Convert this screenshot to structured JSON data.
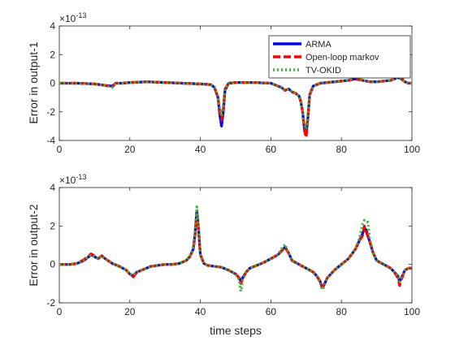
{
  "chart_data": [
    {
      "type": "line",
      "ylabel": "Error in output-1",
      "xlabel": "",
      "exponent_label": "×10",
      "exponent_power": "-13",
      "xlim": [
        0,
        100
      ],
      "ylim": [
        -4,
        4
      ],
      "xticks": [
        "0",
        "20",
        "40",
        "60",
        "80",
        "100"
      ],
      "yticks": [
        "-4",
        "-2",
        "0",
        "2",
        "4"
      ],
      "legend": {
        "placement": "top-right",
        "entries": [
          "ARMA",
          "Open-loop markov",
          "TV-OKID"
        ]
      },
      "series": [
        {
          "name": "ARMA",
          "color": "#0000ff",
          "x": [
            0,
            5,
            10,
            13,
            15,
            16,
            18,
            20,
            25,
            30,
            35,
            40,
            43,
            44,
            45,
            45.5,
            46,
            46.5,
            47,
            48,
            50,
            55,
            60,
            62,
            63,
            64,
            65,
            66,
            67,
            68,
            68.5,
            69,
            69.5,
            70,
            70.5,
            71,
            72,
            74,
            76,
            78,
            80,
            82,
            84,
            86,
            88,
            90,
            92,
            94,
            95,
            96,
            97,
            98,
            99,
            100
          ],
          "y": [
            0,
            0,
            -0.05,
            -0.15,
            -0.2,
            0,
            0,
            0.05,
            0.1,
            0.05,
            0,
            -0.05,
            -0.1,
            -0.3,
            -1.0,
            -2.2,
            -3.0,
            -2.0,
            -0.5,
            0,
            0.05,
            0.05,
            0,
            -0.2,
            -0.3,
            -0.5,
            -0.4,
            -0.6,
            -0.7,
            -0.9,
            -1.3,
            -2.0,
            -3.2,
            -3.6,
            -2.4,
            -0.8,
            -0.2,
            0,
            0.05,
            0.1,
            0.15,
            0.2,
            0.3,
            0.2,
            0.1,
            0.1,
            0.15,
            0.2,
            0.3,
            0.4,
            0.3,
            0.1,
            0,
            0
          ]
        },
        {
          "name": "Open-loop markov",
          "color": "#ff0000",
          "x": [
            0,
            5,
            10,
            13,
            15,
            16,
            18,
            20,
            25,
            30,
            35,
            40,
            43,
            44,
            45,
            45.5,
            46,
            46.5,
            47,
            48,
            50,
            55,
            60,
            62,
            63,
            64,
            65,
            66,
            67,
            68,
            68.5,
            69,
            69.5,
            70,
            70.5,
            71,
            72,
            74,
            76,
            78,
            80,
            82,
            84,
            86,
            88,
            90,
            92,
            94,
            95,
            96,
            96.5,
            97,
            97.5,
            98,
            99,
            100
          ],
          "y": [
            0,
            0,
            -0.05,
            -0.15,
            -0.25,
            0,
            0,
            0.05,
            0.1,
            0.05,
            0,
            -0.05,
            -0.1,
            -0.3,
            -1.0,
            -2.0,
            -2.6,
            -1.8,
            -0.4,
            0,
            0.05,
            0.05,
            0,
            -0.2,
            -0.3,
            -0.5,
            -0.4,
            -0.6,
            -0.7,
            -0.9,
            -1.3,
            -2.0,
            -3.3,
            -3.8,
            -2.4,
            -0.8,
            -0.2,
            0,
            0.05,
            0.1,
            0.15,
            0.2,
            0.3,
            0.2,
            0.1,
            0.1,
            0.15,
            0.2,
            0.3,
            0.5,
            0.8,
            0.5,
            0.2,
            0.1,
            0,
            0
          ]
        },
        {
          "name": "TV-OKID",
          "color": "#33bb33",
          "x": [
            0,
            5,
            10,
            13,
            15,
            16,
            18,
            20,
            25,
            30,
            35,
            40,
            43,
            44,
            45,
            45.5,
            46,
            46.5,
            47,
            48,
            50,
            55,
            60,
            62,
            63,
            64,
            65,
            66,
            67,
            68,
            68.5,
            69,
            69.5,
            70,
            70.5,
            71,
            72,
            74,
            76,
            78,
            80,
            82,
            83,
            84,
            86,
            88,
            90,
            92,
            94,
            95,
            96,
            97,
            98,
            99,
            100
          ],
          "y": [
            0,
            0,
            -0.05,
            -0.15,
            -0.3,
            0,
            0,
            0.05,
            0.1,
            0.05,
            0,
            -0.05,
            -0.1,
            -0.3,
            -0.9,
            -1.8,
            -2.2,
            -1.6,
            -0.4,
            0,
            0.05,
            0.05,
            0,
            -0.2,
            -0.3,
            -0.5,
            -0.4,
            -0.6,
            -0.7,
            -0.9,
            -1.2,
            -1.9,
            -2.9,
            -3.2,
            -2.2,
            -0.8,
            -0.2,
            0,
            0.05,
            0.1,
            0.15,
            0.2,
            0.3,
            0.5,
            0.2,
            0.1,
            0.1,
            0.15,
            0.2,
            0.3,
            0.4,
            0.3,
            0.1,
            0,
            0
          ]
        }
      ]
    },
    {
      "type": "line",
      "ylabel": "Error in output-2",
      "xlabel": "time steps",
      "exponent_label": "×10",
      "exponent_power": "-13",
      "xlim": [
        0,
        100
      ],
      "ylim": [
        -2,
        4
      ],
      "xticks": [
        "0",
        "20",
        "40",
        "60",
        "80",
        "100"
      ],
      "yticks": [
        "-2",
        "0",
        "2",
        "4"
      ],
      "series": [
        {
          "name": "ARMA",
          "color": "#0000ff",
          "x": [
            0,
            3,
            5,
            7,
            9,
            10,
            11,
            12,
            13,
            15,
            17,
            19,
            20,
            21,
            22,
            24,
            26,
            28,
            30,
            32,
            34,
            36,
            37,
            38,
            38.5,
            39,
            39.5,
            40,
            41,
            42,
            44,
            46,
            48,
            50,
            51,
            51.5,
            52,
            53,
            54,
            56,
            58,
            60,
            62,
            63,
            64,
            65,
            66,
            68,
            70,
            72,
            73,
            74,
            74.5,
            75,
            76,
            78,
            80,
            82,
            84,
            85,
            86,
            86.5,
            87,
            88,
            89,
            90,
            92,
            94,
            95,
            96,
            96.5,
            97,
            98,
            99,
            100
          ],
          "y": [
            0,
            0,
            0.05,
            0.2,
            0.5,
            0.4,
            0.3,
            0.45,
            0.3,
            0.05,
            -0.1,
            -0.3,
            -0.5,
            -0.6,
            -0.4,
            -0.25,
            -0.1,
            -0.05,
            0,
            0,
            0.05,
            0.2,
            0.4,
            0.8,
            1.6,
            2.8,
            1.8,
            0.5,
            0.05,
            -0.05,
            -0.1,
            -0.15,
            -0.3,
            -0.5,
            -0.7,
            -0.9,
            -0.7,
            -0.4,
            -0.2,
            -0.05,
            0.1,
            0.3,
            0.5,
            0.7,
            0.9,
            0.6,
            0.2,
            0,
            -0.2,
            -0.4,
            -0.6,
            -0.9,
            -1.2,
            -1.1,
            -0.7,
            -0.3,
            0,
            0.3,
            0.8,
            1.2,
            1.6,
            1.9,
            1.8,
            1.2,
            0.6,
            0.2,
            0,
            -0.2,
            -0.4,
            -0.6,
            -0.9,
            -0.7,
            -0.3,
            -0.2,
            -0.2
          ]
        },
        {
          "name": "Open-loop markov",
          "color": "#ff0000",
          "x": [
            0,
            3,
            5,
            7,
            9,
            10,
            11,
            12,
            13,
            15,
            17,
            19,
            20,
            21,
            22,
            24,
            26,
            28,
            30,
            32,
            34,
            36,
            37,
            38,
            38.5,
            39,
            39.5,
            40,
            41,
            42,
            44,
            46,
            48,
            50,
            51,
            51.5,
            52,
            53,
            54,
            56,
            58,
            60,
            62,
            63,
            64,
            65,
            66,
            68,
            70,
            72,
            73,
            74,
            74.5,
            75,
            76,
            78,
            80,
            82,
            84,
            85,
            86,
            86.5,
            87,
            88,
            89,
            90,
            92,
            94,
            95,
            96,
            96.5,
            97,
            98,
            99,
            100
          ],
          "y": [
            0,
            0,
            0.05,
            0.25,
            0.55,
            0.45,
            0.3,
            0.45,
            0.3,
            0.05,
            -0.1,
            -0.3,
            -0.5,
            -0.65,
            -0.4,
            -0.25,
            -0.1,
            -0.05,
            0,
            0,
            0.05,
            0.2,
            0.4,
            0.8,
            1.5,
            2.6,
            1.7,
            0.5,
            0.05,
            -0.05,
            -0.1,
            -0.15,
            -0.3,
            -0.5,
            -0.7,
            -1.0,
            -0.7,
            -0.4,
            -0.2,
            -0.05,
            0.1,
            0.3,
            0.5,
            0.7,
            0.9,
            0.6,
            0.2,
            0,
            -0.2,
            -0.4,
            -0.6,
            -0.9,
            -1.2,
            -1.1,
            -0.7,
            -0.3,
            0,
            0.3,
            0.8,
            1.2,
            1.5,
            2.0,
            1.7,
            1.2,
            0.6,
            0.2,
            0,
            -0.2,
            -0.4,
            -0.7,
            -1.1,
            -0.8,
            -0.3,
            -0.2,
            -0.2
          ]
        },
        {
          "name": "TV-OKID",
          "color": "#33bb33",
          "x": [
            0,
            3,
            5,
            7,
            9,
            10,
            11,
            12,
            13,
            15,
            17,
            19,
            20,
            21,
            22,
            24,
            26,
            28,
            30,
            32,
            34,
            36,
            37,
            38,
            38.5,
            39,
            39.5,
            40,
            41,
            42,
            44,
            46,
            48,
            50,
            51,
            51.5,
            52,
            53,
            54,
            56,
            58,
            60,
            62,
            63,
            64,
            65,
            66,
            68,
            70,
            72,
            73,
            74,
            74.5,
            75,
            76,
            78,
            80,
            82,
            84,
            85,
            86,
            86.5,
            87,
            87.5,
            88,
            89,
            90,
            92,
            94,
            95,
            96,
            96.5,
            97,
            98,
            99,
            100
          ],
          "y": [
            0,
            0,
            0.05,
            0.2,
            0.5,
            0.4,
            0.3,
            0.45,
            0.3,
            0.05,
            -0.1,
            -0.3,
            -0.5,
            -0.55,
            -0.4,
            -0.25,
            -0.1,
            -0.05,
            0,
            0,
            0.05,
            0.2,
            0.4,
            0.9,
            1.7,
            3.0,
            1.9,
            0.5,
            0.05,
            -0.05,
            -0.1,
            -0.15,
            -0.3,
            -0.5,
            -0.8,
            -1.4,
            -0.8,
            -0.4,
            -0.2,
            -0.05,
            0.1,
            0.3,
            0.5,
            0.8,
            1.05,
            0.6,
            0.2,
            0,
            -0.2,
            -0.4,
            -0.6,
            -1.0,
            -1.3,
            -1.2,
            -0.7,
            -0.3,
            0,
            0.3,
            0.8,
            1.3,
            2.1,
            2.3,
            2.2,
            2.2,
            1.4,
            0.6,
            0.2,
            0,
            -0.2,
            -0.4,
            -0.6,
            -0.9,
            -0.7,
            -0.3,
            -0.2,
            -0.2
          ]
        }
      ]
    }
  ]
}
